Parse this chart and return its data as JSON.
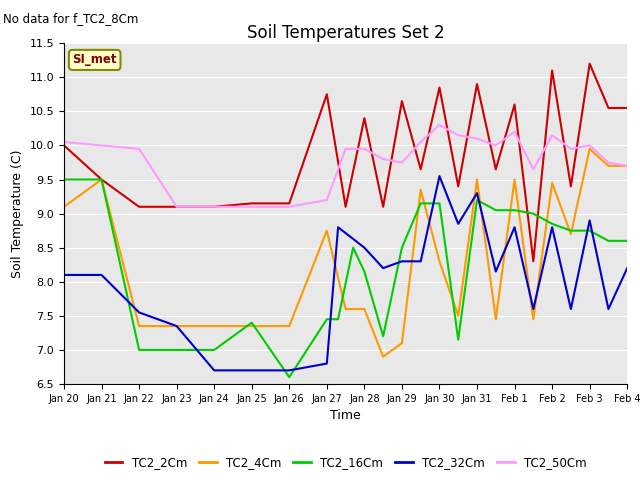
{
  "title": "Soil Temperatures Set 2",
  "subtitle": "No data for f_TC2_8Cm",
  "xlabel": "Time",
  "ylabel": "Soil Temperature (C)",
  "ylim": [
    6.5,
    11.5
  ],
  "bg_color": "#e8e8e8",
  "legend_label": "SI_met",
  "series": {
    "TC2_2Cm": {
      "color": "#cc0000",
      "x": [
        20,
        21,
        22,
        23,
        24,
        25,
        26,
        27,
        27.5,
        28,
        28.5,
        29,
        29.5,
        30,
        30.5,
        31,
        31.5,
        32,
        32.5,
        33,
        33.5,
        34,
        34.5,
        35
      ],
      "y": [
        10.0,
        9.5,
        9.1,
        9.1,
        9.1,
        9.15,
        9.15,
        10.75,
        9.1,
        10.4,
        9.1,
        10.65,
        9.65,
        10.85,
        9.4,
        10.9,
        9.65,
        10.6,
        8.3,
        11.1,
        9.4,
        11.2,
        10.55,
        10.55
      ]
    },
    "TC2_4Cm": {
      "color": "#ff9900",
      "x": [
        20,
        21,
        22,
        23,
        24,
        25,
        26,
        27,
        27.5,
        28,
        28.5,
        29,
        29.5,
        30,
        30.5,
        31,
        31.5,
        32,
        32.5,
        33,
        33.5,
        34,
        34.5,
        35
      ],
      "y": [
        9.1,
        9.5,
        7.35,
        7.35,
        7.35,
        7.35,
        7.35,
        8.75,
        7.6,
        7.6,
        6.9,
        7.1,
        9.35,
        8.3,
        7.5,
        9.5,
        7.45,
        9.5,
        7.45,
        9.45,
        8.7,
        9.95,
        9.7,
        9.7
      ]
    },
    "TC2_16Cm": {
      "color": "#00cc00",
      "x": [
        20,
        21,
        22,
        23,
        24,
        25,
        26,
        27,
        27.3,
        27.7,
        28,
        28.5,
        29,
        29.5,
        30,
        30.5,
        31,
        31.5,
        32,
        32.5,
        33,
        33.5,
        34,
        34.5,
        35
      ],
      "y": [
        9.5,
        9.5,
        7.0,
        7.0,
        7.0,
        7.4,
        6.6,
        7.45,
        7.45,
        8.5,
        8.15,
        7.2,
        8.5,
        9.15,
        9.15,
        7.15,
        9.2,
        9.05,
        9.05,
        9.0,
        8.85,
        8.75,
        8.75,
        8.6,
        8.6
      ]
    },
    "TC2_32Cm": {
      "color": "#0000cc",
      "x": [
        20,
        21,
        22,
        23,
        24,
        25,
        26,
        27,
        27.3,
        28,
        28.5,
        29,
        29.5,
        30,
        30.5,
        31,
        31.5,
        32,
        32.5,
        33,
        33.5,
        34,
        34.5,
        35
      ],
      "y": [
        8.1,
        8.1,
        7.55,
        7.35,
        6.7,
        6.7,
        6.7,
        6.8,
        8.8,
        8.5,
        8.2,
        8.3,
        8.3,
        9.55,
        8.85,
        9.3,
        8.15,
        8.8,
        7.6,
        8.8,
        7.6,
        8.9,
        7.6,
        8.2
      ]
    },
    "TC2_50Cm": {
      "color": "#ff99ff",
      "x": [
        20,
        21,
        22,
        23,
        24,
        25,
        26,
        27,
        27.5,
        28,
        28.5,
        29,
        29.5,
        30,
        30.5,
        31,
        31.5,
        32,
        32.5,
        33,
        33.5,
        34,
        34.5,
        35
      ],
      "y": [
        10.05,
        10.0,
        9.95,
        9.1,
        9.1,
        9.1,
        9.1,
        9.2,
        9.95,
        9.95,
        9.8,
        9.75,
        10.05,
        10.3,
        10.15,
        10.1,
        10.0,
        10.2,
        9.65,
        10.15,
        9.95,
        10.0,
        9.75,
        9.7
      ]
    }
  },
  "xtick_labels": [
    "Jan 20",
    "Jan 21",
    "Jan 22",
    "Jan 23",
    "Jan 24",
    "Jan 25",
    "Jan 26",
    "Jan 27",
    "Jan 28",
    "Jan 29",
    "Jan 30",
    "Jan 31",
    "Feb 1",
    "Feb 2",
    "Feb 3",
    "Feb 4"
  ],
  "xtick_positions": [
    20,
    21,
    22,
    23,
    24,
    25,
    26,
    27,
    28,
    29,
    30,
    31,
    32,
    33,
    34,
    35
  ],
  "ytick_positions": [
    6.5,
    7.0,
    7.5,
    8.0,
    8.5,
    9.0,
    9.5,
    10.0,
    10.5,
    11.0,
    11.5
  ]
}
